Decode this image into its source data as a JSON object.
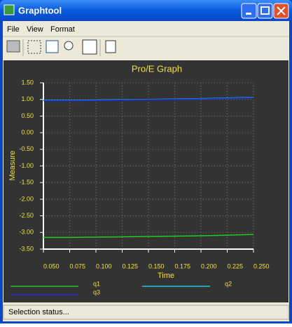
{
  "window": {
    "title": "Graphtool"
  },
  "menu": [
    "File",
    "View",
    "Format"
  ],
  "chart_data": {
    "type": "line",
    "title": "Pro/E Graph",
    "x_label": "Time",
    "y_label": "Measure",
    "x": [
      0.05,
      0.075,
      0.1,
      0.125,
      0.15,
      0.175,
      0.2,
      0.225,
      0.25
    ],
    "series": [
      {
        "name": "q1",
        "color": "#22cc22",
        "values": [
          -3.15,
          -3.15,
          -3.14,
          -3.13,
          -3.12,
          -3.11,
          -3.1,
          -3.08,
          -3.06
        ]
      },
      {
        "name": "q2",
        "color": "#22c8e6",
        "values": [
          0.97,
          0.97,
          0.98,
          0.99,
          1.0,
          1.01,
          1.02,
          1.04,
          1.06
        ]
      },
      {
        "name": "q3",
        "color": "#1a2ee6",
        "values": [
          0.96,
          0.96,
          0.97,
          0.98,
          0.99,
          1.0,
          1.01,
          1.03,
          1.05
        ]
      }
    ],
    "xlim": [
      0.05,
      0.25
    ],
    "xticks": [
      {
        "value": 0.05,
        "label": "0.050"
      },
      {
        "value": 0.075,
        "label": "0.075"
      },
      {
        "value": 0.1,
        "label": "0.100"
      },
      {
        "value": 0.125,
        "label": "0.125"
      },
      {
        "value": 0.15,
        "label": "0.150"
      },
      {
        "value": 0.175,
        "label": "0.175"
      },
      {
        "value": 0.2,
        "label": "0.200"
      },
      {
        "value": 0.225,
        "label": "0.225"
      },
      {
        "value": 0.25,
        "label": "0.250"
      }
    ],
    "ylim": [
      -3.5,
      1.5
    ],
    "yticks": [
      {
        "value": 1.5,
        "label": "1.50"
      },
      {
        "value": 1.0,
        "label": "1.00"
      },
      {
        "value": 0.5,
        "label": "0.50"
      },
      {
        "value": 0.0,
        "label": "0.00"
      },
      {
        "value": -0.5,
        "label": "-0.50"
      },
      {
        "value": -1.0,
        "label": "-1.00"
      },
      {
        "value": -1.5,
        "label": "-1.50"
      },
      {
        "value": -2.0,
        "label": "-2.00"
      },
      {
        "value": -2.5,
        "label": "-2.50"
      },
      {
        "value": -3.0,
        "label": "-3.00"
      },
      {
        "value": -3.5,
        "label": "-3.50"
      }
    ],
    "grid": true
  },
  "status": "Selection status..."
}
